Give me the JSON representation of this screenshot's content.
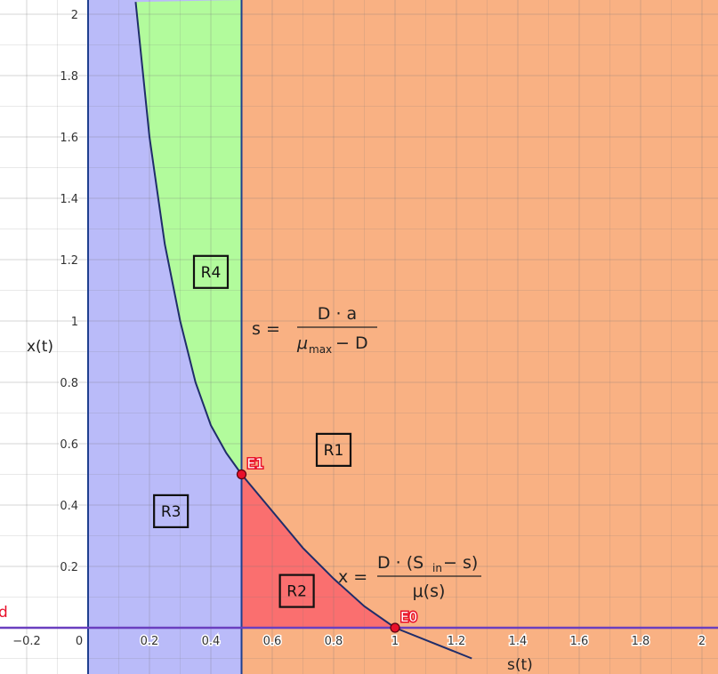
{
  "axes": {
    "x_title": "s(t)",
    "y_title": "x(t)",
    "xlim": [
      -0.25,
      2.1
    ],
    "ylim": [
      -0.15,
      2.05
    ],
    "x_ticks": [
      "−0.2",
      "0",
      "0.2",
      "0.4",
      "0.6",
      "0.8",
      "1",
      "1.2",
      "1.4",
      "1.6",
      "1.8",
      "2"
    ],
    "x_tick_values": [
      -0.2,
      0,
      0.2,
      0.4,
      0.6,
      0.8,
      1,
      1.2,
      1.4,
      1.6,
      1.8,
      2
    ],
    "y_ticks": [
      "0.2",
      "0.4",
      "0.6",
      "0.8",
      "1",
      "1.2",
      "1.4",
      "1.6",
      "1.8",
      "2"
    ],
    "y_tick_values": [
      0.2,
      0.4,
      0.6,
      0.8,
      1,
      1.2,
      1.4,
      1.6,
      1.8,
      2
    ],
    "grid": true
  },
  "colors": {
    "R1": "#f9b183",
    "R2": "#fa6f6f",
    "R3": "#babbf9",
    "R4": "#b2fb9c",
    "axis_line": "#6a3fbf",
    "vertical_line": "#1f3f8f",
    "point": "#e8102a"
  },
  "regions": [
    {
      "id": "R1",
      "label": "R1",
      "at": [
        0.8,
        0.58
      ]
    },
    {
      "id": "R2",
      "label": "R2",
      "at": [
        0.68,
        0.12
      ]
    },
    {
      "id": "R3",
      "label": "R3",
      "at": [
        0.27,
        0.38
      ]
    },
    {
      "id": "R4",
      "label": "R4",
      "at": [
        0.4,
        1.16
      ]
    }
  ],
  "points": [
    {
      "label": "E1",
      "s": 0.5,
      "x": 0.5
    },
    {
      "label": "E0",
      "s": 1.0,
      "x": 0.0
    }
  ],
  "cut_label": "d",
  "formulas": {
    "vertical": {
      "lhs": "s =",
      "num": "D · a",
      "den_mu": "μ",
      "den_sub": "max",
      "den_rest": " − D"
    },
    "curve": {
      "lhs": "x =",
      "num_a": "D · (S",
      "num_sub": "in",
      "num_b": " − s)",
      "den": "μ(s)"
    }
  },
  "chart_data": {
    "type": "area",
    "series": [
      {
        "name": "s = D·a/(μmax − D)",
        "x": [
          0.5,
          0.5
        ],
        "y": [
          -0.15,
          2.05
        ]
      },
      {
        "name": "x = D·(Sin − s)/μ(s)",
        "x": [
          0.155,
          0.2,
          0.25,
          0.3,
          0.35,
          0.4,
          0.45,
          0.5,
          0.6,
          0.7,
          0.8,
          0.9,
          1.0,
          1.1,
          1.25
        ],
        "y": [
          2.04,
          1.6,
          1.25,
          1.0,
          0.8,
          0.66,
          0.57,
          0.5,
          0.38,
          0.26,
          0.16,
          0.07,
          0.0,
          -0.04,
          -0.1
        ]
      }
    ]
  }
}
